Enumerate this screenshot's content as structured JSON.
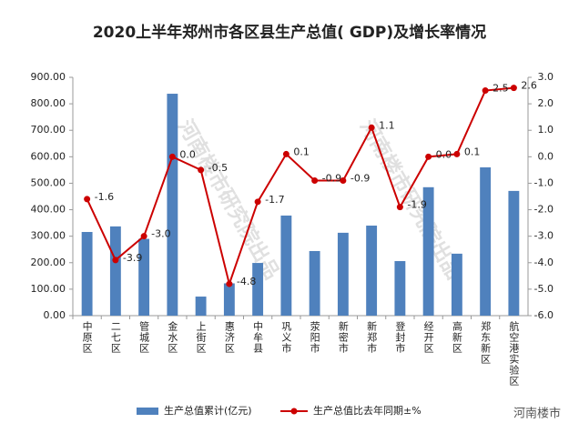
{
  "chart_data": {
    "type": "bar_line",
    "title": "2020上半年郑州市各区县生产总值( GDP)及增长率情况",
    "watermark": "河南楼市研究院出品",
    "source": "河南楼市",
    "categories": [
      "中原区",
      "二七区",
      "管城区",
      "金水区",
      "上街区",
      "惠济区",
      "中牟县",
      "巩义市",
      "荥阳市",
      "新密市",
      "新郑市",
      "登封市",
      "经开区",
      "高新区",
      "郑东新区",
      "航空港实验区"
    ],
    "series": [
      {
        "name": "生产总值累计(亿元)",
        "type": "bar",
        "color": "#4f81bd",
        "values": [
          316,
          337,
          290,
          838,
          72,
          122,
          199,
          378,
          244,
          313,
          340,
          206,
          485,
          234,
          560,
          471
        ]
      },
      {
        "name": "生产总值比去年同期±%",
        "type": "line",
        "axis": "y2",
        "color": "#cc0000",
        "values": [
          -1.6,
          -3.9,
          -3.0,
          0.0,
          -0.5,
          -4.8,
          -1.7,
          0.1,
          -0.9,
          -0.9,
          1.1,
          -1.9,
          0.0,
          0.1,
          2.5,
          2.6
        ],
        "value_labels": [
          "-1.6",
          "-3.9",
          "-3.0",
          "0.0",
          "-0.5",
          "-4.8",
          "-1.7",
          "0.1",
          "-0.9",
          "-0.9",
          "1.1",
          "-1.9",
          "0.0",
          "0.1",
          "2.5",
          "2.6"
        ]
      }
    ],
    "ylim": [
      0,
      900
    ],
    "yticks": [
      {
        "value": 0,
        "label": "0.00"
      },
      {
        "value": 100,
        "label": "100.00"
      },
      {
        "value": 200,
        "label": "200.00"
      },
      {
        "value": 300,
        "label": "300.00"
      },
      {
        "value": 400,
        "label": "400.00"
      },
      {
        "value": 500,
        "label": "500.00"
      },
      {
        "value": 600,
        "label": "600.00"
      },
      {
        "value": 700,
        "label": "700.00"
      },
      {
        "value": 800,
        "label": "800.00"
      },
      {
        "value": 900,
        "label": "900.00"
      }
    ],
    "y2lim": [
      -6,
      3
    ],
    "y2ticks": [
      {
        "value": -6,
        "label": "-6.0"
      },
      {
        "value": -5,
        "label": "-5.0"
      },
      {
        "value": -4,
        "label": "-4.0"
      },
      {
        "value": -3,
        "label": "-3.0"
      },
      {
        "value": -2,
        "label": "-2.0"
      },
      {
        "value": -1,
        "label": "-1.0"
      },
      {
        "value": 0,
        "label": "0.0"
      },
      {
        "value": 1,
        "label": "1.0"
      },
      {
        "value": 2,
        "label": "2.0"
      },
      {
        "value": 3,
        "label": "3.0"
      }
    ],
    "grid": false
  }
}
